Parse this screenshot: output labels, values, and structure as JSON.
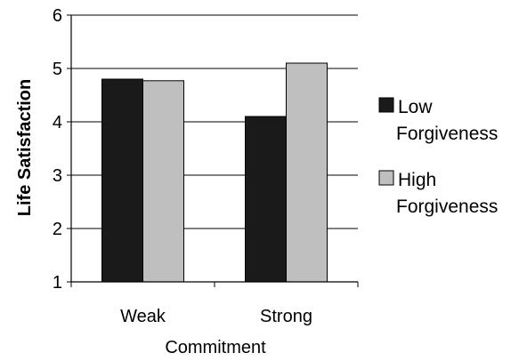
{
  "chart_data": {
    "type": "bar",
    "xlabel": "Commitment",
    "ylabel": "Life Satisfaction",
    "categories": [
      "Weak",
      "Strong"
    ],
    "ylim": [
      1,
      6
    ],
    "yticks": [
      "1",
      "2",
      "3",
      "4",
      "5",
      "6"
    ],
    "grid": "horizontal",
    "legend_position": "right",
    "series": [
      {
        "name_lines": [
          "Low",
          "Forgiveness"
        ],
        "values": [
          4.8,
          4.1
        ],
        "color": "#1a1a1a"
      },
      {
        "name_lines": [
          "High",
          "Forgiveness"
        ],
        "values": [
          4.77,
          5.1
        ],
        "color": "#bfbfbf"
      }
    ]
  }
}
